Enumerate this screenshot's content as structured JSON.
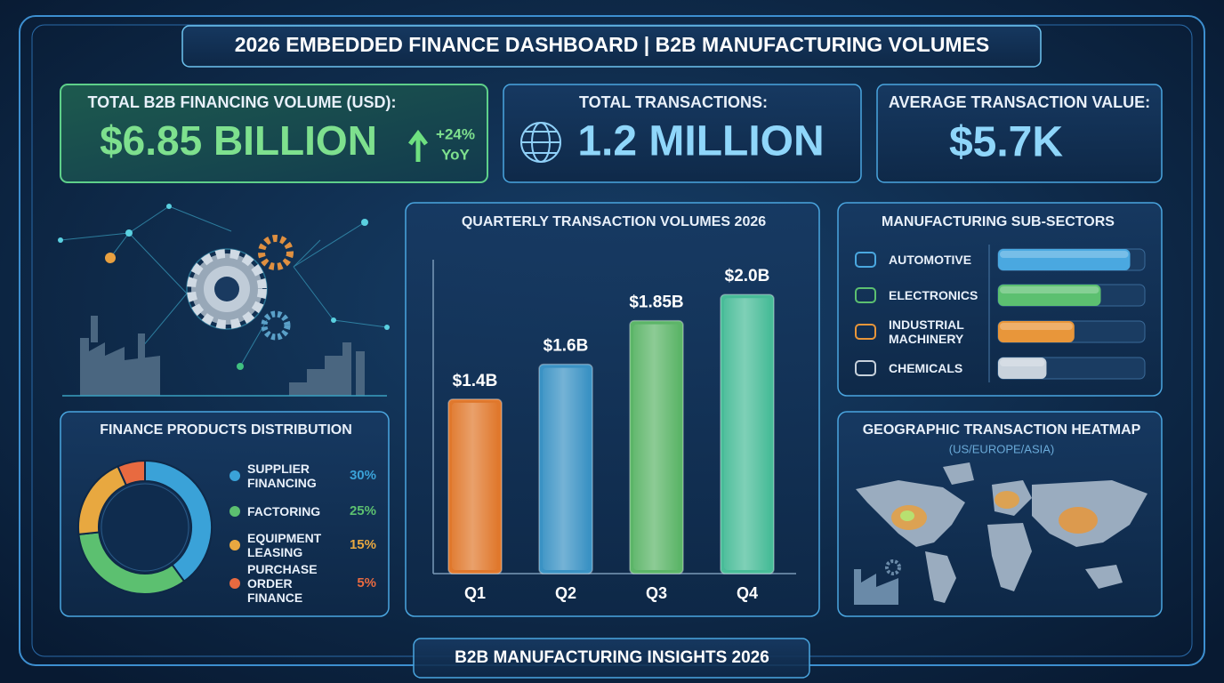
{
  "header": {
    "title": "2026 EMBEDDED FINANCE DASHBOARD | B2B MANUFACTURING VOLUMES"
  },
  "kpis": [
    {
      "label": "TOTAL B2B FINANCING VOLUME (USD):",
      "value": "$6.85 BILLION",
      "change": "+24%",
      "change_period": "YoY"
    },
    {
      "label": "TOTAL TRANSACTIONS:",
      "value": "1.2 MILLION"
    },
    {
      "label": "AVERAGE TRANSACTION VALUE:",
      "value": "$5.7K"
    }
  ],
  "chart_data": [
    {
      "type": "bar",
      "title": "QUARTERLY TRANSACTION VOLUMES 2026",
      "categories": [
        "Q1",
        "Q2",
        "Q3",
        "Q4"
      ],
      "values": [
        1.4,
        1.6,
        1.85,
        2.0
      ],
      "value_labels": [
        "$1.4B",
        "$1.6B",
        "$1.85B",
        "$2.0B"
      ],
      "colors": [
        "#e0782c",
        "#3a92c4",
        "#5cb568",
        "#48bc98"
      ],
      "ylim": [
        0.4,
        2.2
      ]
    },
    {
      "type": "donut",
      "title": "FINANCE PRODUCTS DISTRIBUTION",
      "categories": [
        "SUPPLIER FINANCING",
        "FACTORING",
        "EQUIPMENT LEASING",
        "PURCHASE ORDER FINANCE"
      ],
      "values": [
        30,
        25,
        15,
        5
      ],
      "value_labels": [
        "30%",
        "25%",
        "15%",
        "5%"
      ],
      "colors": [
        "#3aa2d8",
        "#5cc070",
        "#e8a840",
        "#e86a40"
      ]
    },
    {
      "type": "hbar",
      "title": "MANUFACTURING SUB-SECTORS",
      "categories": [
        "AUTOMOTIVE",
        "ELECTRONICS",
        "INDUSTRIAL MACHINERY",
        "CHEMICALS"
      ],
      "values": [
        90,
        70,
        52,
        33
      ],
      "colors": [
        "#4aa8e0",
        "#5cc070",
        "#e8963a",
        "#c8d2dc"
      ],
      "xlim": [
        0,
        100
      ]
    }
  ],
  "heatmap": {
    "title": "GEOGRAPHIC TRANSACTION HEATMAP",
    "subtitle": "(US/EUROPE/ASIA)"
  },
  "footer": {
    "text": "B2B MANUFACTURING INSIGHTS 2026"
  }
}
